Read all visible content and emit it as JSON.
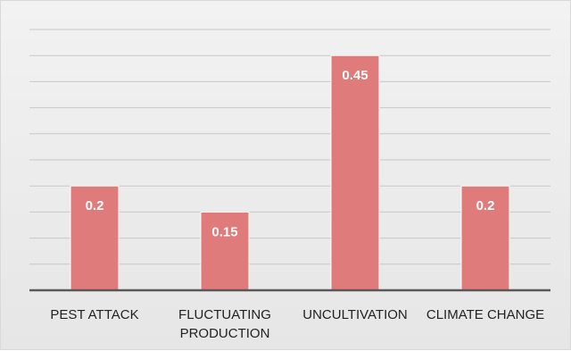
{
  "chart_data": {
    "type": "bar",
    "title": "",
    "xlabel": "",
    "ylabel": "",
    "categories": [
      [
        "PEST ATTACK"
      ],
      [
        "FLUCTUATING",
        "PRODUCTION"
      ],
      [
        "UNCULTIVATION"
      ],
      [
        "CLIMATE CHANGE"
      ]
    ],
    "values": [
      0.2,
      0.15,
      0.45,
      0.2
    ],
    "data_labels": [
      "0.2",
      "0.15",
      "0.45",
      "0.2"
    ],
    "ylim": [
      0,
      0.5
    ],
    "y_tick_step": 0.05,
    "y_axis_labels_shown": false,
    "grid": true,
    "legend": "none",
    "colors": {
      "bar": "#e07b7b",
      "bar_edge": "#ffffff",
      "grid": "#c8c8c8",
      "axis": "#595959",
      "background": "#ececec"
    }
  }
}
